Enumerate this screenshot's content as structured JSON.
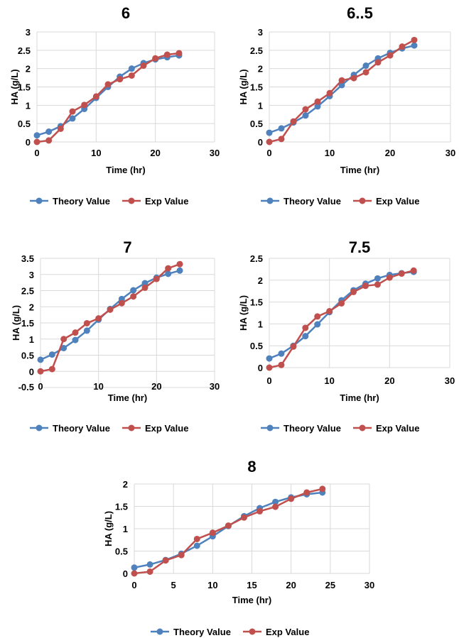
{
  "colors": {
    "theory": "#4f81bd",
    "exp": "#c0504d",
    "grid": "#d9d9d9"
  },
  "chart_data": [
    {
      "type": "line",
      "title": "6",
      "xlabel": "Time (hr)",
      "ylabel": "HA (g/L)",
      "xlim": [
        0,
        30
      ],
      "xticks": [
        0,
        10,
        20,
        30
      ],
      "ylim": [
        0,
        3
      ],
      "yticks": [
        0,
        0.5,
        1,
        1.5,
        2,
        2.5,
        3
      ],
      "legend": "bottom",
      "grid": true,
      "x": [
        0,
        2,
        4,
        6,
        8,
        10,
        12,
        14,
        16,
        18,
        20,
        22,
        24
      ],
      "series": [
        {
          "name": "Theory Value",
          "values": [
            0.18,
            0.28,
            0.43,
            0.64,
            0.9,
            1.2,
            1.5,
            1.78,
            2.0,
            2.15,
            2.25,
            2.31,
            2.36
          ]
        },
        {
          "name": "Exp Value",
          "values": [
            0,
            0.04,
            0.36,
            0.83,
            1.01,
            1.24,
            1.57,
            1.71,
            1.81,
            2.08,
            2.28,
            2.38,
            2.42
          ]
        }
      ]
    },
    {
      "type": "line",
      "title": "6..5",
      "xlabel": "Time (hr)",
      "ylabel": "HA (g/L)",
      "xlim": [
        0,
        30
      ],
      "xticks": [
        0,
        10,
        20,
        30
      ],
      "ylim": [
        0,
        3
      ],
      "yticks": [
        0,
        0.5,
        1,
        1.5,
        2,
        2.5,
        3
      ],
      "legend": "bottom",
      "grid": true,
      "x": [
        0,
        2,
        4,
        6,
        8,
        10,
        12,
        14,
        16,
        18,
        20,
        22,
        24
      ],
      "series": [
        {
          "name": "Theory Value",
          "values": [
            0.25,
            0.37,
            0.53,
            0.72,
            0.97,
            1.25,
            1.55,
            1.83,
            2.08,
            2.28,
            2.43,
            2.55,
            2.63
          ]
        },
        {
          "name": "Exp Value",
          "values": [
            0,
            0.08,
            0.56,
            0.89,
            1.1,
            1.33,
            1.68,
            1.74,
            1.9,
            2.17,
            2.36,
            2.6,
            2.78
          ]
        }
      ]
    },
    {
      "type": "line",
      "title": "7",
      "xlabel": "Time (hr)",
      "ylabel": "HA (g/L)",
      "xlim": [
        0,
        30
      ],
      "xticks": [
        0,
        10,
        20,
        30
      ],
      "ylim": [
        -0.5,
        3.5
      ],
      "yticks": [
        -0.5,
        0,
        0.5,
        1,
        1.5,
        2,
        2.5,
        3,
        3.5
      ],
      "legend": "bottom",
      "grid": true,
      "x": [
        0,
        2,
        4,
        6,
        8,
        10,
        12,
        14,
        16,
        18,
        20,
        22,
        24
      ],
      "series": [
        {
          "name": "Theory Value",
          "values": [
            0.36,
            0.52,
            0.72,
            0.97,
            1.26,
            1.6,
            1.93,
            2.24,
            2.51,
            2.73,
            2.9,
            3.02,
            3.12
          ]
        },
        {
          "name": "Exp Value",
          "values": [
            0,
            0.07,
            1.0,
            1.2,
            1.49,
            1.64,
            1.91,
            2.11,
            2.32,
            2.59,
            2.86,
            3.19,
            3.32
          ]
        }
      ]
    },
    {
      "type": "line",
      "title": "7.5",
      "xlabel": "Time (hr)",
      "ylabel": "HA (g/L)",
      "xlim": [
        0,
        30
      ],
      "xticks": [
        0,
        10,
        20,
        30
      ],
      "ylim": [
        0,
        2.5
      ],
      "yticks": [
        0,
        0.5,
        1,
        1.5,
        2,
        2.5
      ],
      "legend": "bottom",
      "grid": true,
      "x": [
        0,
        2,
        4,
        6,
        8,
        10,
        12,
        14,
        16,
        18,
        20,
        22,
        24
      ],
      "series": [
        {
          "name": "Theory Value",
          "values": [
            0.21,
            0.32,
            0.5,
            0.72,
            0.99,
            1.27,
            1.54,
            1.77,
            1.92,
            2.04,
            2.12,
            2.16,
            2.19
          ]
        },
        {
          "name": "Exp Value",
          "values": [
            0,
            0.06,
            0.48,
            0.91,
            1.17,
            1.29,
            1.47,
            1.73,
            1.87,
            1.9,
            2.06,
            2.15,
            2.22
          ]
        }
      ]
    },
    {
      "type": "line",
      "title": "8",
      "xlabel": "Time (hr)",
      "ylabel": "HA (g/L)",
      "xlim": [
        0,
        30
      ],
      "xticks": [
        0,
        5,
        10,
        15,
        20,
        25,
        30
      ],
      "ylim": [
        0,
        2
      ],
      "yticks": [
        0,
        0.5,
        1,
        1.5,
        2
      ],
      "legend": "bottom",
      "grid": true,
      "x": [
        0,
        2,
        4,
        6,
        8,
        10,
        12,
        14,
        16,
        18,
        20,
        22,
        24
      ],
      "series": [
        {
          "name": "Theory Value",
          "values": [
            0.13,
            0.2,
            0.3,
            0.44,
            0.62,
            0.83,
            1.06,
            1.28,
            1.46,
            1.6,
            1.7,
            1.77,
            1.81
          ]
        },
        {
          "name": "Exp Value",
          "values": [
            0,
            0.04,
            0.29,
            0.41,
            0.77,
            0.91,
            1.07,
            1.25,
            1.39,
            1.49,
            1.67,
            1.81,
            1.89
          ]
        }
      ]
    }
  ]
}
